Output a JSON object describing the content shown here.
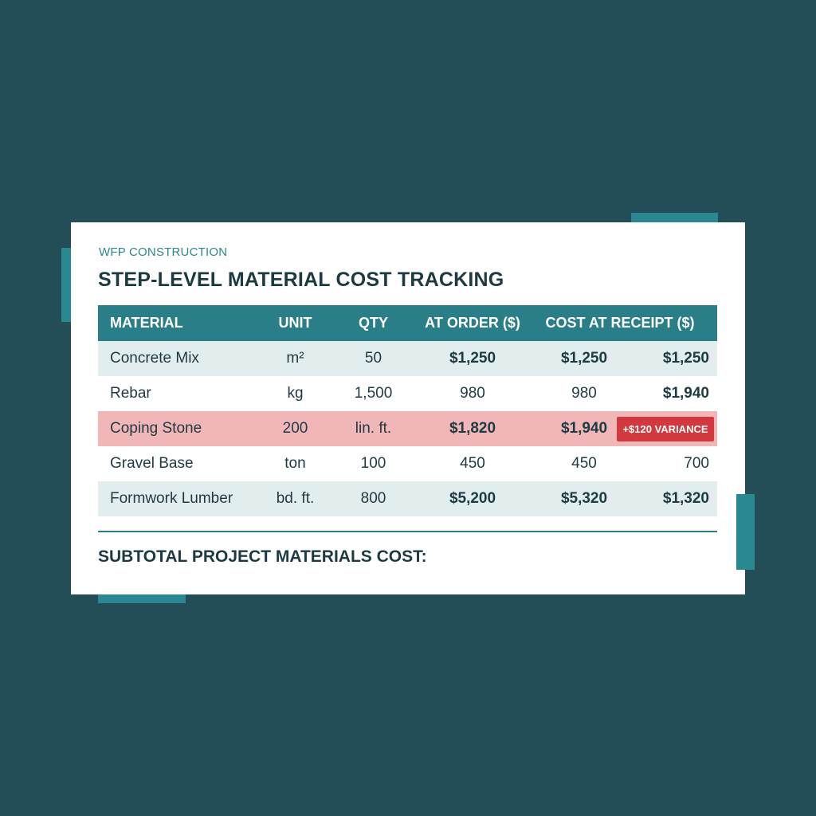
{
  "header": {
    "company": "WFP CONSTRUCTION",
    "title": "STEP-LEVEL MATERIAL COST TRACKING"
  },
  "table": {
    "columns": {
      "material": "MATERIAL",
      "unit": "UNIT",
      "qty": "QTY",
      "at_order": "AT ORDER ($)",
      "cost_at_receipt": "COST AT RECEIPT ($)"
    },
    "rows": [
      {
        "material": "Concrete Mix",
        "unit": "m²",
        "qty": "50",
        "at_order": "$1,250",
        "receipt": "$1,250",
        "total": "$1,250"
      },
      {
        "material": "Rebar",
        "unit": "kg",
        "qty": "1,500",
        "at_order": "980",
        "receipt": "980",
        "total": "$1,940"
      },
      {
        "material": "Coping Stone",
        "unit": "200",
        "qty": "lin. ft.",
        "at_order": "$1,820",
        "receipt": "$1,940",
        "badge": "+$120 VARIANCE"
      },
      {
        "material": "Gravel Base",
        "unit": "ton",
        "qty": "100",
        "at_order": "450",
        "receipt": "450",
        "total": "700"
      },
      {
        "material": "Formwork Lumber",
        "unit": "bd. ft.",
        "qty": "800",
        "at_order": "$5,200",
        "receipt": "$5,320",
        "total": "$1,320"
      }
    ]
  },
  "footer": {
    "subtotal_label": "SUBTOTAL PROJECT MATERIALS COST:"
  },
  "colors": {
    "background": "#234e58",
    "accent": "#2a8891",
    "header": "#2a7e88",
    "highlight_row": "#f1b6b8",
    "variance_badge": "#d2393e"
  }
}
